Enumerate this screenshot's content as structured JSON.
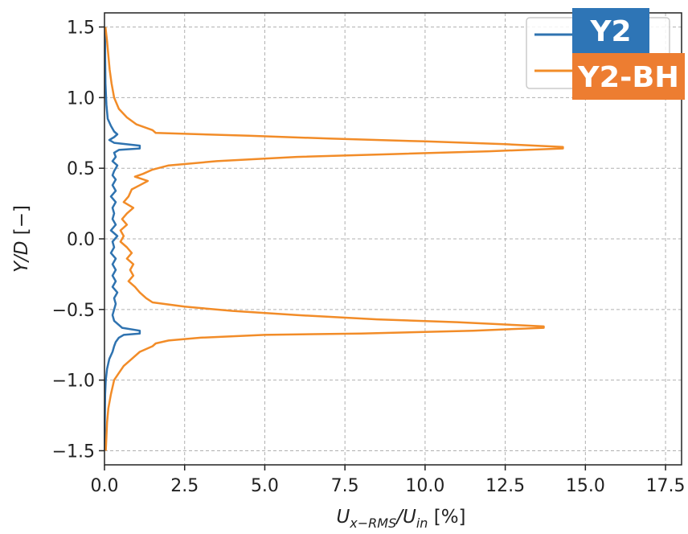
{
  "chart_data": {
    "type": "line",
    "title": "",
    "xlabel": "U_x-RMS/U_in [%]",
    "ylabel": "Y/D [−]",
    "xlim": [
      0,
      18
    ],
    "ylim": [
      -1.6,
      1.6
    ],
    "x_ticks": [
      0.0,
      2.5,
      5.0,
      7.5,
      10.0,
      12.5,
      15.0,
      17.5
    ],
    "y_ticks": [
      -1.5,
      -1.0,
      -0.5,
      0.0,
      0.5,
      1.0,
      1.5
    ],
    "x_tick_labels": [
      "0.0",
      "2.5",
      "5.0",
      "7.5",
      "10.0",
      "12.5",
      "15.0",
      "17.5"
    ],
    "y_tick_labels": [
      "−1.5",
      "−1.0",
      "−0.5",
      "0.0",
      "0.5",
      "1.0",
      "1.5"
    ],
    "grid": true,
    "legend_position": "top-right",
    "series": [
      {
        "name": "Y2",
        "color": "#2f73b0",
        "label_bg": "#2e75b6",
        "points": [
          [
            0.02,
            1.5
          ],
          [
            0.02,
            1.3
          ],
          [
            0.03,
            1.1
          ],
          [
            0.06,
            0.95
          ],
          [
            0.1,
            0.85
          ],
          [
            0.2,
            0.8
          ],
          [
            0.3,
            0.76
          ],
          [
            0.4,
            0.74
          ],
          [
            0.3,
            0.72
          ],
          [
            0.15,
            0.7
          ],
          [
            0.3,
            0.68
          ],
          [
            1.1,
            0.66
          ],
          [
            1.1,
            0.64
          ],
          [
            0.45,
            0.63
          ],
          [
            0.3,
            0.61
          ],
          [
            0.35,
            0.58
          ],
          [
            0.25,
            0.55
          ],
          [
            0.4,
            0.52
          ],
          [
            0.3,
            0.48
          ],
          [
            0.25,
            0.45
          ],
          [
            0.35,
            0.42
          ],
          [
            0.25,
            0.38
          ],
          [
            0.35,
            0.34
          ],
          [
            0.2,
            0.3
          ],
          [
            0.35,
            0.26
          ],
          [
            0.25,
            0.22
          ],
          [
            0.3,
            0.18
          ],
          [
            0.25,
            0.14
          ],
          [
            0.35,
            0.1
          ],
          [
            0.2,
            0.06
          ],
          [
            0.4,
            0.02
          ],
          [
            0.25,
            -0.02
          ],
          [
            0.3,
            -0.06
          ],
          [
            0.2,
            -0.1
          ],
          [
            0.35,
            -0.14
          ],
          [
            0.25,
            -0.18
          ],
          [
            0.35,
            -0.22
          ],
          [
            0.25,
            -0.26
          ],
          [
            0.35,
            -0.3
          ],
          [
            0.25,
            -0.34
          ],
          [
            0.4,
            -0.38
          ],
          [
            0.3,
            -0.42
          ],
          [
            0.35,
            -0.46
          ],
          [
            0.3,
            -0.5
          ],
          [
            0.25,
            -0.54
          ],
          [
            0.3,
            -0.58
          ],
          [
            0.45,
            -0.61
          ],
          [
            0.55,
            -0.63
          ],
          [
            1.1,
            -0.65
          ],
          [
            1.1,
            -0.67
          ],
          [
            0.6,
            -0.68
          ],
          [
            0.45,
            -0.7
          ],
          [
            0.35,
            -0.73
          ],
          [
            0.3,
            -0.76
          ],
          [
            0.25,
            -0.8
          ],
          [
            0.15,
            -0.85
          ],
          [
            0.08,
            -0.92
          ],
          [
            0.04,
            -1.0
          ],
          [
            0.02,
            -1.1
          ],
          [
            0.01,
            -1.3
          ],
          [
            0.01,
            -1.5
          ]
        ]
      },
      {
        "name": "Y2-BH",
        "color": "#f28c28",
        "label_bg": "#ed7d31",
        "points": [
          [
            0.03,
            1.5
          ],
          [
            0.08,
            1.4
          ],
          [
            0.12,
            1.3
          ],
          [
            0.16,
            1.2
          ],
          [
            0.22,
            1.1
          ],
          [
            0.3,
            1.0
          ],
          [
            0.45,
            0.92
          ],
          [
            0.7,
            0.86
          ],
          [
            1.0,
            0.81
          ],
          [
            1.5,
            0.77
          ],
          [
            1.6,
            0.75
          ],
          [
            4.5,
            0.73
          ],
          [
            7.0,
            0.71
          ],
          [
            10.0,
            0.69
          ],
          [
            12.5,
            0.67
          ],
          [
            14.3,
            0.65
          ],
          [
            14.3,
            0.64
          ],
          [
            12.0,
            0.62
          ],
          [
            9.0,
            0.6
          ],
          [
            6.0,
            0.58
          ],
          [
            3.5,
            0.55
          ],
          [
            2.0,
            0.52
          ],
          [
            1.5,
            0.49
          ],
          [
            1.2,
            0.46
          ],
          [
            0.95,
            0.44
          ],
          [
            1.35,
            0.41
          ],
          [
            1.1,
            0.38
          ],
          [
            0.85,
            0.35
          ],
          [
            0.75,
            0.3
          ],
          [
            0.6,
            0.26
          ],
          [
            0.9,
            0.22
          ],
          [
            0.7,
            0.18
          ],
          [
            0.55,
            0.14
          ],
          [
            0.7,
            0.1
          ],
          [
            0.5,
            0.06
          ],
          [
            0.6,
            0.02
          ],
          [
            0.5,
            -0.02
          ],
          [
            0.7,
            -0.06
          ],
          [
            0.85,
            -0.1
          ],
          [
            0.7,
            -0.14
          ],
          [
            0.9,
            -0.18
          ],
          [
            0.8,
            -0.22
          ],
          [
            0.9,
            -0.26
          ],
          [
            0.75,
            -0.3
          ],
          [
            0.95,
            -0.34
          ],
          [
            1.1,
            -0.38
          ],
          [
            1.3,
            -0.42
          ],
          [
            1.5,
            -0.45
          ],
          [
            2.5,
            -0.48
          ],
          [
            4.0,
            -0.51
          ],
          [
            6.0,
            -0.54
          ],
          [
            8.5,
            -0.57
          ],
          [
            11.0,
            -0.59
          ],
          [
            12.8,
            -0.61
          ],
          [
            13.7,
            -0.62
          ],
          [
            13.7,
            -0.63
          ],
          [
            11.5,
            -0.65
          ],
          [
            8.0,
            -0.67
          ],
          [
            5.0,
            -0.68
          ],
          [
            3.0,
            -0.7
          ],
          [
            2.0,
            -0.72
          ],
          [
            1.6,
            -0.74
          ],
          [
            1.5,
            -0.76
          ],
          [
            1.1,
            -0.8
          ],
          [
            0.85,
            -0.85
          ],
          [
            0.6,
            -0.9
          ],
          [
            0.45,
            -0.95
          ],
          [
            0.3,
            -1.0
          ],
          [
            0.2,
            -1.1
          ],
          [
            0.12,
            -1.2
          ],
          [
            0.08,
            -1.3
          ],
          [
            0.06,
            -1.4
          ],
          [
            0.04,
            -1.5
          ]
        ]
      }
    ]
  }
}
